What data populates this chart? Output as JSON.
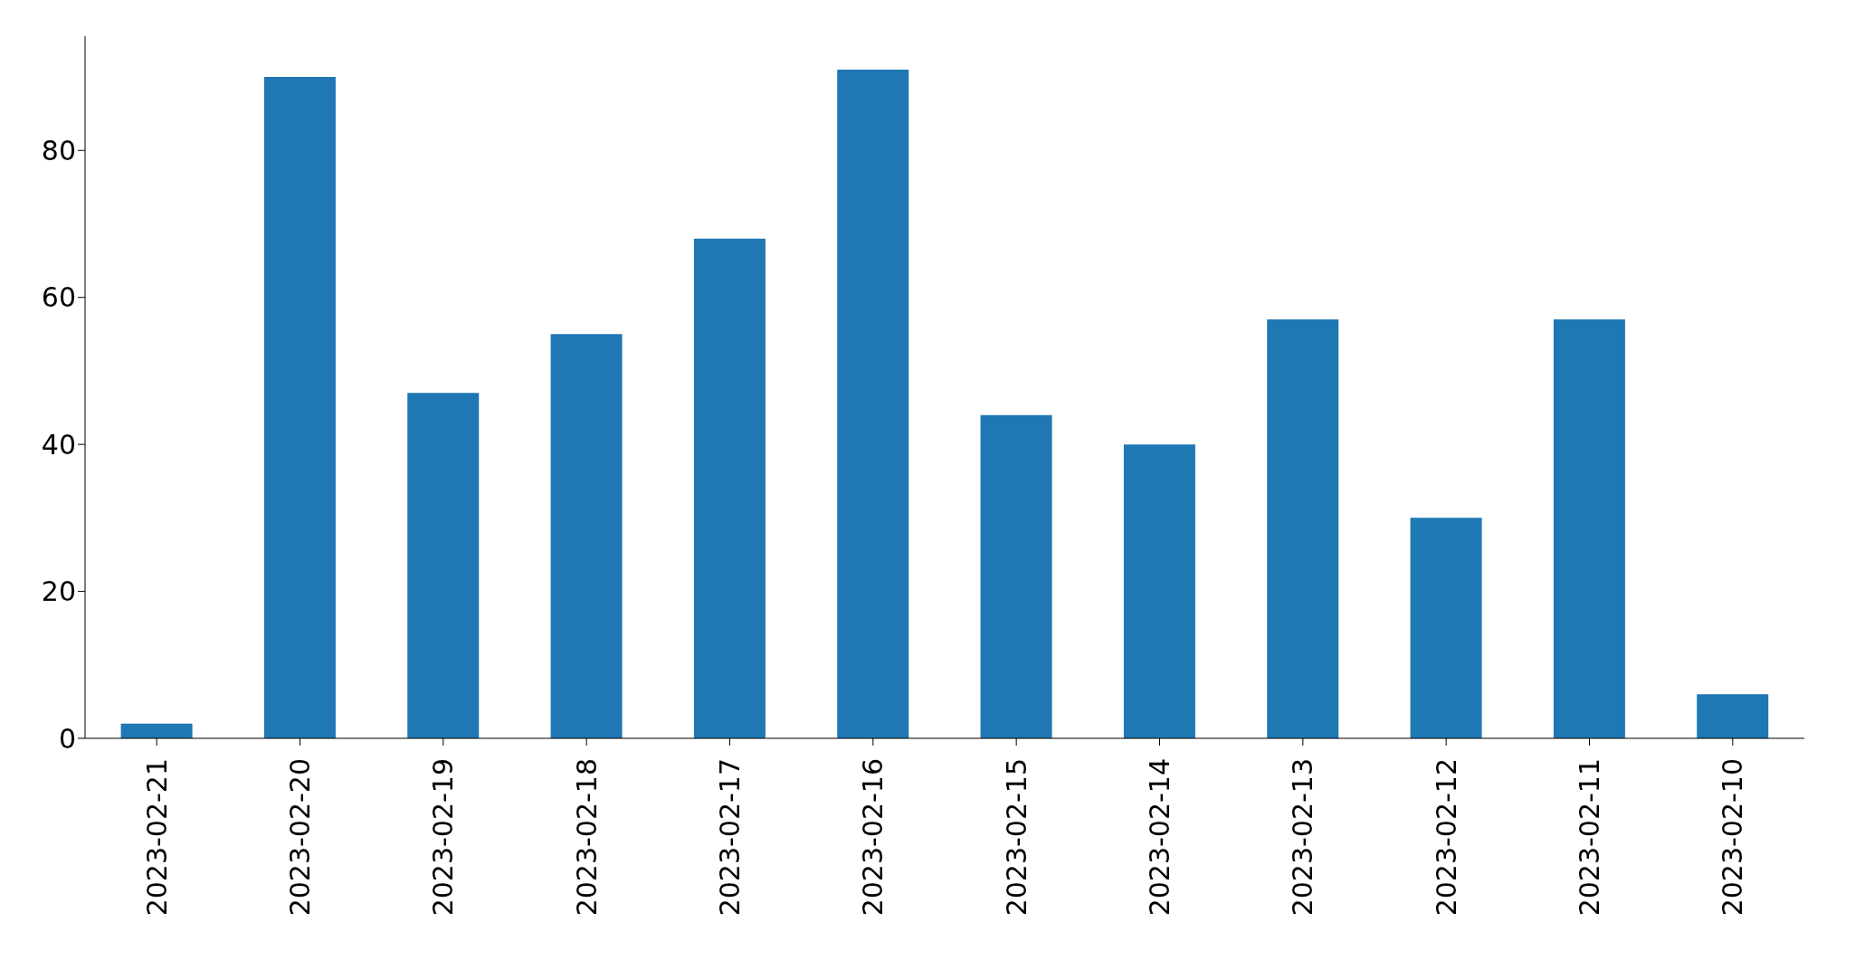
{
  "chart_data": {
    "type": "bar",
    "categories": [
      "2023-02-21",
      "2023-02-20",
      "2023-02-19",
      "2023-02-18",
      "2023-02-17",
      "2023-02-16",
      "2023-02-15",
      "2023-02-14",
      "2023-02-13",
      "2023-02-12",
      "2023-02-11",
      "2023-02-10"
    ],
    "values": [
      2,
      90,
      47,
      55,
      68,
      91,
      44,
      40,
      57,
      30,
      57,
      6
    ],
    "color": "#1f77b4",
    "ylim": [
      0,
      95.55
    ],
    "yticks": [
      0,
      20,
      40,
      60,
      80
    ]
  }
}
